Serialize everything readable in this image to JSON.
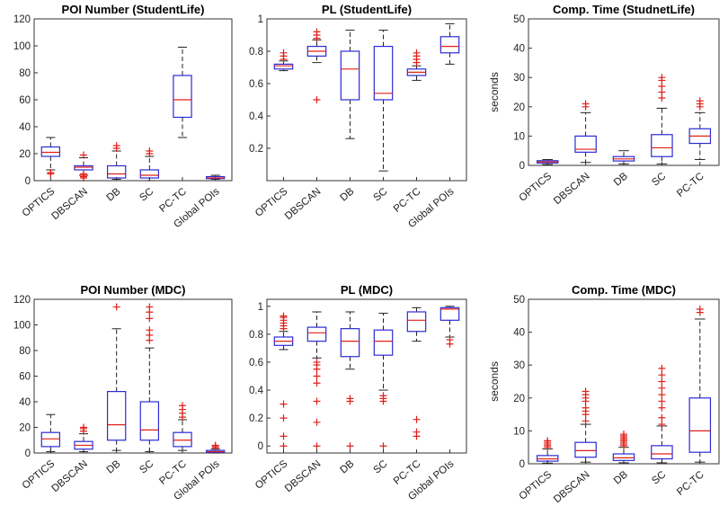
{
  "colors": {
    "box": "#2b2bd6",
    "median": "#e0201b",
    "whisker": "#222222",
    "outlier": "#e0201b",
    "axis": "#333333"
  },
  "chart_data": [
    {
      "type": "box",
      "title": "POI Number (StudentLife)",
      "ylabel": "",
      "ylim": [
        0,
        120
      ],
      "yticks": [
        "0",
        "20",
        "40",
        "60",
        "80",
        "100",
        "120"
      ],
      "categories": [
        "OPTICS",
        "DBSCAN",
        "DB",
        "SC",
        "PC-TC",
        "Global POIs"
      ],
      "boxes": [
        {
          "min": 8,
          "q1": 18,
          "median": 21,
          "q3": 25,
          "max": 32,
          "outliers": [
            5,
            6
          ]
        },
        {
          "min": 4,
          "q1": 8,
          "median": 10,
          "q3": 11,
          "max": 17,
          "outliers": [
            2,
            3,
            4,
            5,
            19
          ]
        },
        {
          "min": 1,
          "q1": 2,
          "median": 5,
          "q3": 11,
          "max": 22,
          "outliers": [
            24,
            26
          ]
        },
        {
          "min": 0,
          "q1": 2,
          "median": 4,
          "q3": 8,
          "max": 18,
          "outliers": [
            20,
            22
          ]
        },
        {
          "min": 32,
          "q1": 47,
          "median": 60,
          "q3": 78,
          "max": 99,
          "outliers": []
        },
        {
          "min": 1,
          "q1": 1.5,
          "median": 2,
          "q3": 3,
          "max": 4,
          "outliers": []
        }
      ]
    },
    {
      "type": "box",
      "title": "PL (StudentLife)",
      "ylabel": "",
      "ylim": [
        0,
        1
      ],
      "yticks": [
        "0.2",
        "0.4",
        "0.6",
        "0.8",
        "1"
      ],
      "categories": [
        "OPTICS",
        "DBSCAN",
        "DB",
        "SC",
        "PC-TC",
        "Global POIs"
      ],
      "boxes": [
        {
          "min": 0.68,
          "q1": 0.69,
          "median": 0.71,
          "q3": 0.72,
          "max": 0.74,
          "outliers": [
            0.75,
            0.77,
            0.79
          ]
        },
        {
          "min": 0.73,
          "q1": 0.77,
          "median": 0.8,
          "q3": 0.83,
          "max": 0.87,
          "outliers": [
            0.5,
            0.88,
            0.9,
            0.92
          ]
        },
        {
          "min": 0.26,
          "q1": 0.5,
          "median": 0.69,
          "q3": 0.8,
          "max": 0.93,
          "outliers": []
        },
        {
          "min": 0.06,
          "q1": 0.5,
          "median": 0.54,
          "q3": 0.83,
          "max": 0.93,
          "outliers": []
        },
        {
          "min": 0.62,
          "q1": 0.65,
          "median": 0.67,
          "q3": 0.69,
          "max": 0.71,
          "outliers": [
            0.73,
            0.75,
            0.77,
            0.79
          ]
        },
        {
          "min": 0.72,
          "q1": 0.79,
          "median": 0.83,
          "q3": 0.89,
          "max": 0.97,
          "outliers": []
        }
      ]
    },
    {
      "type": "box",
      "title": "Comp. Time (StudnetLife)",
      "ylabel": "seconds",
      "ylim": [
        0,
        50
      ],
      "yticks": [
        "0",
        "10",
        "20",
        "30",
        "40",
        "50"
      ],
      "categories": [
        "OPTICS",
        "DBSCAN",
        "DB",
        "SC",
        "PC-TC"
      ],
      "boxes": [
        {
          "min": 0.3,
          "q1": 0.8,
          "median": 1.2,
          "q3": 1.6,
          "max": 2,
          "outliers": []
        },
        {
          "min": 1,
          "q1": 4.5,
          "median": 5.5,
          "q3": 10,
          "max": 18,
          "outliers": [
            20,
            21
          ]
        },
        {
          "min": 0.5,
          "q1": 1.5,
          "median": 2.2,
          "q3": 3,
          "max": 5,
          "outliers": []
        },
        {
          "min": 0.5,
          "q1": 3,
          "median": 6,
          "q3": 10.5,
          "max": 19.5,
          "outliers": [
            23,
            25,
            27,
            29,
            30
          ]
        },
        {
          "min": 2,
          "q1": 7.5,
          "median": 10,
          "q3": 12.5,
          "max": 18,
          "outliers": [
            20,
            21,
            22
          ]
        }
      ]
    },
    {
      "type": "box",
      "title": "POI Number (MDC)",
      "ylabel": "",
      "ylim": [
        0,
        120
      ],
      "yticks": [
        "0",
        "20",
        "40",
        "60",
        "80",
        "100",
        "120"
      ],
      "categories": [
        "OPTICS",
        "DBSCAN",
        "DB",
        "SC",
        "PC-TC",
        "Global POIs"
      ],
      "boxes": [
        {
          "min": 1,
          "q1": 5,
          "median": 11,
          "q3": 16,
          "max": 30,
          "outliers": []
        },
        {
          "min": 1,
          "q1": 3,
          "median": 6,
          "q3": 9,
          "max": 15,
          "outliers": [
            17,
            19,
            20
          ]
        },
        {
          "min": 2,
          "q1": 10,
          "median": 22,
          "q3": 48,
          "max": 97,
          "outliers": [
            114
          ]
        },
        {
          "min": 1,
          "q1": 10,
          "median": 18,
          "q3": 40,
          "max": 82,
          "outliers": [
            88,
            92,
            96,
            105,
            110,
            114
          ]
        },
        {
          "min": 2,
          "q1": 5,
          "median": 10,
          "q3": 16,
          "max": 26,
          "outliers": [
            28,
            31,
            34,
            37
          ]
        },
        {
          "min": 0,
          "q1": 0.5,
          "median": 1,
          "q3": 2,
          "max": 3,
          "outliers": [
            4,
            5,
            6
          ]
        }
      ]
    },
    {
      "type": "box",
      "title": "PL (MDC)",
      "ylabel": "",
      "ylim": [
        -0.05,
        1.05
      ],
      "yticks": [
        "0",
        "0.2",
        "0.4",
        "0.6",
        "0.8",
        "1"
      ],
      "categories": [
        "OPTICS",
        "DBSCAN",
        "DB",
        "SC",
        "PC-TC",
        "Global POIs"
      ],
      "boxes": [
        {
          "min": 0.69,
          "q1": 0.72,
          "median": 0.75,
          "q3": 0.78,
          "max": 0.82,
          "outliers": [
            0,
            0.07,
            0.2,
            0.3,
            0.84,
            0.86,
            0.88,
            0.9,
            0.92,
            0.93
          ]
        },
        {
          "min": 0.63,
          "q1": 0.75,
          "median": 0.81,
          "q3": 0.85,
          "max": 0.96,
          "outliers": [
            0,
            0.17,
            0.32,
            0.45,
            0.5,
            0.55,
            0.58,
            0.6
          ]
        },
        {
          "min": 0.55,
          "q1": 0.64,
          "median": 0.75,
          "q3": 0.84,
          "max": 0.96,
          "outliers": [
            0,
            0.32,
            0.34
          ]
        },
        {
          "min": 0.4,
          "q1": 0.65,
          "median": 0.75,
          "q3": 0.83,
          "max": 0.95,
          "outliers": [
            0,
            0.32,
            0.34,
            0.36
          ]
        },
        {
          "min": 0.75,
          "q1": 0.82,
          "median": 0.9,
          "q3": 0.96,
          "max": 0.99,
          "outliers": [
            0.07,
            0.1,
            0.19
          ]
        },
        {
          "min": 0.78,
          "q1": 0.9,
          "median": 0.98,
          "q3": 0.99,
          "max": 1.0,
          "outliers": [
            0.73,
            0.76
          ]
        }
      ]
    },
    {
      "type": "box",
      "title": "Comp. Time (MDC)",
      "ylabel": "seconds",
      "ylim": [
        0,
        50
      ],
      "yticks": [
        "0",
        "10",
        "20",
        "30",
        "40",
        "50"
      ],
      "categories": [
        "OPTICS",
        "DBSCAN",
        "DB",
        "SC",
        "PC-TC"
      ],
      "boxes": [
        {
          "min": 0.2,
          "q1": 0.8,
          "median": 1.5,
          "q3": 2.5,
          "max": 4.5,
          "outliers": [
            5,
            5.5,
            6,
            6.5,
            7
          ]
        },
        {
          "min": 0.5,
          "q1": 2,
          "median": 4,
          "q3": 6.5,
          "max": 12,
          "outliers": [
            13,
            15,
            16,
            17,
            19,
            20,
            21,
            22
          ]
        },
        {
          "min": 0.3,
          "q1": 1,
          "median": 1.8,
          "q3": 3,
          "max": 5,
          "outliers": [
            5.5,
            6,
            6.5,
            7,
            7.5,
            8,
            8.5,
            9
          ]
        },
        {
          "min": 0.3,
          "q1": 1.5,
          "median": 3,
          "q3": 5.5,
          "max": 11.5,
          "outliers": [
            12,
            14,
            17,
            19,
            21,
            23,
            25,
            27,
            29
          ]
        },
        {
          "min": 0.5,
          "q1": 3.5,
          "median": 10,
          "q3": 20,
          "max": 44,
          "outliers": [
            46,
            47
          ]
        }
      ]
    }
  ]
}
